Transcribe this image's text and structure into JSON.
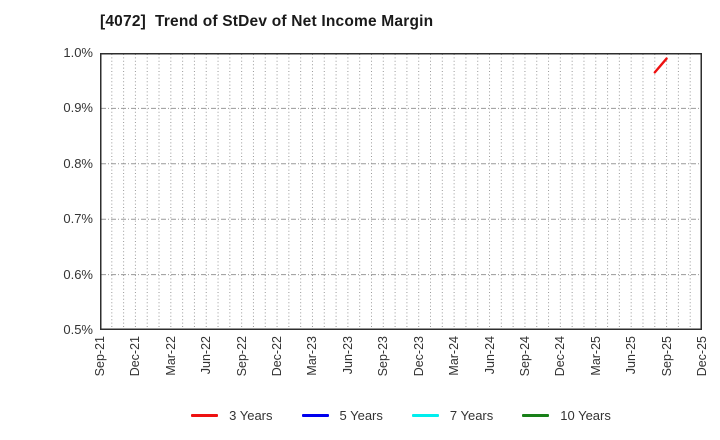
{
  "title": "[4072]  Trend of StDev of Net Income Margin",
  "chart_data": {
    "type": "line",
    "title": "[4072]  Trend of StDev of Net Income Margin",
    "xlabel": "",
    "ylabel": "",
    "y_unit": "%",
    "ylim": [
      0.5,
      1.0
    ],
    "y_ticks": [
      1.0,
      0.9,
      0.8,
      0.7,
      0.6,
      0.5
    ],
    "y_tick_labels": [
      "1.0%",
      "0.9%",
      "0.8%",
      "0.7%",
      "0.6%",
      "0.5%"
    ],
    "x_axis_start": "Sep-21",
    "x_axis_end": "Dec-25",
    "months_total": 51,
    "x_tick_labels": [
      "Sep-21",
      "Dec-21",
      "Mar-22",
      "Jun-22",
      "Sep-22",
      "Dec-22",
      "Mar-23",
      "Jun-23",
      "Sep-23",
      "Dec-23",
      "Mar-24",
      "Jun-24",
      "Sep-24",
      "Dec-24",
      "Mar-25",
      "Jun-25",
      "Sep-25",
      "Dec-25"
    ],
    "x_tick_month_index": [
      0,
      3,
      6,
      9,
      12,
      15,
      18,
      21,
      24,
      27,
      30,
      33,
      36,
      39,
      42,
      45,
      48,
      51
    ],
    "grid": {
      "vertical": "dotted, one line per month",
      "horizontal": "dashed, every 0.1%"
    },
    "legend_position": "bottom center",
    "series": [
      {
        "name": "3 Years",
        "color": "#ee1111",
        "points": [
          {
            "month": "Aug-25",
            "month_index": 47,
            "value": 0.965
          },
          {
            "month": "Sep-25",
            "month_index": 48,
            "value": 0.99
          }
        ]
      },
      {
        "name": "5 Years",
        "color": "#0000ee",
        "points": []
      },
      {
        "name": "7 Years",
        "color": "#00eeee",
        "points": []
      },
      {
        "name": "10 Years",
        "color": "#188018",
        "points": []
      }
    ]
  },
  "style_colors": {
    "background": "#ffffff",
    "plot_border": "#2e2e2e",
    "gridline": "#9a9a9a",
    "tick_text": "#333333",
    "title_text": "#1a1a1a"
  }
}
